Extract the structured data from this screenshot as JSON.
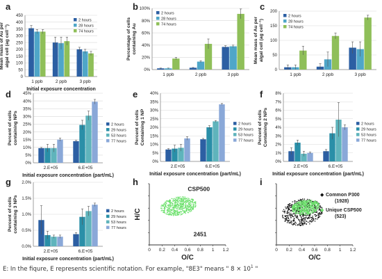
{
  "footnote": {
    "text": "E: In the fiqure, E represents scientific notation. For example, \"8E3\" means \" 8 × 10",
    "sup": "1",
    "end": " \""
  },
  "chart_data": [
    {
      "id": "a",
      "type": "bar",
      "letter": "a",
      "categories": [
        "1 ppb",
        "2 ppb",
        "3 ppb"
      ],
      "series": [
        {
          "name": "2 hours",
          "color": "#2c5fa3",
          "values": [
            355,
            250,
            200
          ],
          "err": [
            20,
            40,
            15
          ]
        },
        {
          "name": "28 hours",
          "color": "#4fa6c8",
          "values": [
            330,
            245,
            185
          ],
          "err": [
            15,
            45,
            15
          ]
        },
        {
          "name": "74 hours",
          "color": "#8fbf59",
          "values": [
            330,
            260,
            170
          ],
          "err": [
            15,
            30,
            15
          ]
        }
      ],
      "ylim": [
        0,
        450
      ],
      "yticks": [
        0,
        50,
        100,
        150,
        200,
        250,
        300,
        350,
        400,
        450
      ],
      "ylabel": "Mean mass of Au per algal cell (ag cell⁻¹)",
      "xlabel": "Initial exposure concentration",
      "legend": "top-right"
    },
    {
      "id": "b",
      "type": "bar",
      "letter": "b",
      "categories": [
        "1 ppb",
        "2 ppb",
        "3 ppb"
      ],
      "series": [
        {
          "name": "2 hours",
          "color": "#2c5fa3",
          "values": [
            2,
            3,
            37
          ],
          "err": [
            0.5,
            0.5,
            2
          ]
        },
        {
          "name": "28 hours",
          "color": "#4fa6c8",
          "values": [
            2,
            13,
            38
          ],
          "err": [
            0.5,
            1.5,
            2
          ]
        },
        {
          "name": "74 hours",
          "color": "#8fbf59",
          "values": [
            18,
            42,
            91
          ],
          "err": [
            2,
            8,
            8
          ]
        }
      ],
      "ylim": [
        0,
        100
      ],
      "yticks": [
        0,
        20,
        40,
        60,
        80,
        100
      ],
      "ytickSuffix": "%",
      "ylabel": "Percentage of cells containing Au",
      "xlabel": "",
      "legend": "top-left"
    },
    {
      "id": "c",
      "type": "bar",
      "letter": "c",
      "categories": [
        "1 ppb",
        "2 ppb",
        "3 ppb"
      ],
      "series": [
        {
          "name": "2 hours",
          "color": "#2c5fa3",
          "values": [
            8,
            10,
            75
          ],
          "err": [
            8,
            10,
            20
          ]
        },
        {
          "name": "28 hours",
          "color": "#4fa6c8",
          "values": [
            8,
            35,
            70
          ],
          "err": [
            8,
            25,
            25
          ]
        },
        {
          "name": "74 hours",
          "color": "#8fbf59",
          "values": [
            65,
            115,
            178
          ],
          "err": [
            15,
            10,
            8
          ]
        }
      ],
      "ylim": [
        0,
        200
      ],
      "yticks": [
        0,
        50,
        100,
        150,
        200
      ],
      "ylabel": "Mean mass of Au per algal cell (ag cell⁻¹)",
      "xlabel": "",
      "legend": "top-left"
    },
    {
      "id": "d",
      "type": "bar",
      "letter": "d",
      "categories": [
        "2.E+05",
        "6.E+05"
      ],
      "series": [
        {
          "name": "2 hours",
          "color": "#2c5fa3",
          "values": [
            9.5,
            14
          ],
          "err": [
            0.5,
            0.5
          ]
        },
        {
          "name": "29 hours",
          "color": "#2a8fa8",
          "values": [
            9.5,
            24.5
          ],
          "err": [
            2.5,
            3
          ]
        },
        {
          "name": "53 hours",
          "color": "#5fb4bc",
          "values": [
            9.5,
            30.5
          ],
          "err": [
            2.5,
            3
          ]
        },
        {
          "name": "77 hours",
          "color": "#8aa8d8",
          "values": [
            15,
            39.5
          ],
          "err": [
            1,
            1.5
          ]
        }
      ],
      "ylim": [
        0,
        45
      ],
      "yticks": [
        0,
        5,
        10,
        15,
        20,
        25,
        30,
        35,
        40,
        45
      ],
      "ytickSuffix": "%",
      "ylabel": "Percent of cells containing NPs",
      "xlabel": "Initial exposure concentration (part/mL)",
      "legend": "right"
    },
    {
      "id": "e",
      "type": "bar",
      "letter": "e",
      "categories": [
        "2.E+05",
        "6.E+05"
      ],
      "series": [
        {
          "name": "2 hours",
          "color": "#2c5fa3",
          "values": [
            7,
            13
          ],
          "err": [
            0.5,
            0.5
          ]
        },
        {
          "name": "29 hours",
          "color": "#2a8fa8",
          "values": [
            7.5,
            20
          ],
          "err": [
            2,
            1
          ]
        },
        {
          "name": "53 hours",
          "color": "#5fb4bc",
          "values": [
            8,
            23.5
          ],
          "err": [
            2,
            0.5
          ]
        },
        {
          "name": "77 hours",
          "color": "#8aa8d8",
          "values": [
            13.5,
            33.5
          ],
          "err": [
            1,
            0.5
          ]
        }
      ],
      "ylim": [
        0,
        40
      ],
      "yticks": [
        0,
        5,
        10,
        15,
        20,
        25,
        30,
        35,
        40
      ],
      "ytickSuffix": "%",
      "ylabel": "Percent of cells Containing 1 NP",
      "xlabel": "Initial exposure concentration (part/mL)",
      "legend": "right"
    },
    {
      "id": "f",
      "type": "bar",
      "letter": "f",
      "categories": [
        "2.E+05",
        "6.E+05"
      ],
      "series": [
        {
          "name": "2 hours",
          "color": "#2c5fa3",
          "values": [
            1.2,
            1.2
          ],
          "err": [
            0.4,
            0.2
          ]
        },
        {
          "name": "29 hours",
          "color": "#2a8fa8",
          "values": [
            2.2,
            3.3
          ],
          "err": [
            0.3,
            0.7
          ]
        },
        {
          "name": "53 hours",
          "color": "#5fb4bc",
          "values": [
            0.9,
            4.9
          ],
          "err": [
            0.3,
            2.0
          ]
        },
        {
          "name": "77 hours",
          "color": "#8aa8d8",
          "values": [
            1.0,
            4.0
          ],
          "err": [
            0.1,
            0.3
          ]
        }
      ],
      "ylim": [
        0,
        8
      ],
      "yticks": [
        0,
        1,
        2,
        3,
        4,
        5,
        6,
        7,
        8
      ],
      "ytickSuffix": "%",
      "ylabel": "Percent of cells Containing 2 NPs",
      "xlabel": "Initial exposure concentration (part/mL)",
      "legend": "right"
    },
    {
      "id": "g",
      "type": "bar",
      "letter": "g",
      "categories": [
        "2.E+05",
        "6.E+05"
      ],
      "series": [
        {
          "name": "2 hours",
          "color": "#2c5fa3",
          "values": [
            0.82,
            0.38
          ],
          "err": [
            0.45,
            0.05
          ]
        },
        {
          "name": "29 hours",
          "color": "#2a8fa8",
          "values": [
            0.35,
            0.92
          ],
          "err": [
            0.12,
            0.25
          ]
        },
        {
          "name": "53 hours",
          "color": "#5fb4bc",
          "values": [
            0.3,
            1.1
          ],
          "err": [
            0.05,
            0.15
          ]
        },
        {
          "name": "77 hours",
          "color": "#8aa8d8",
          "values": [
            0.3,
            1.3
          ],
          "err": [
            0.05,
            0.05
          ]
        }
      ],
      "ylim": [
        0,
        2
      ],
      "yticks": [
        0,
        0.5,
        1.0,
        1.5,
        2.0
      ],
      "ytickLabels": [
        "0.0%",
        "0.5%",
        "1.0%",
        "1.5%",
        "2.0%"
      ],
      "ylabel": "Percent of cells containing 3 NPs",
      "xlabel": "Initial exposure concentration (part/mL)",
      "legend": "right"
    },
    {
      "id": "h",
      "type": "scatter",
      "letter": "h",
      "xlabel": "O/C",
      "ylabel": "H/C",
      "xlim": [
        0,
        1.2
      ],
      "ylim": [
        0,
        2.5
      ],
      "xticks": [
        0,
        0.2,
        0.4,
        0.6,
        0.8,
        1,
        1.2
      ],
      "yticks": [
        0,
        0.5,
        1,
        1.5,
        2,
        2.5
      ],
      "annotations": [
        {
          "text": "CSP500",
          "x": 0.95,
          "y": 2.2
        },
        {
          "text": "2451",
          "x": 0.9,
          "y": 0.35
        }
      ],
      "clouds": [
        {
          "color": "#6be06b",
          "cx": 0.45,
          "cy": 1.6,
          "rx": 0.28,
          "ry": 0.38
        }
      ]
    },
    {
      "id": "i",
      "type": "scatter",
      "letter": "i",
      "xlabel": "O/C",
      "ylabel": "",
      "xlim": [
        0,
        1.2
      ],
      "ylim": [
        0,
        2.5
      ],
      "xticks": [
        0,
        0.2,
        0.4,
        0.6,
        0.8,
        1,
        1.2
      ],
      "yticks": [
        0,
        0.5,
        1,
        1.5,
        2,
        2.5
      ],
      "legend_entries": [
        {
          "symbol": "◆",
          "color": "#111111",
          "label": "Common P300",
          "count": "(1928)"
        },
        {
          "symbol": "◆",
          "color": "#6be06b",
          "label": "Unique CSP500",
          "count": "(523)"
        }
      ],
      "clouds": [
        {
          "color": "#111111",
          "cx": 0.4,
          "cy": 1.35,
          "rx": 0.32,
          "ry": 0.55
        },
        {
          "color": "#6be06b",
          "cx": 0.45,
          "cy": 1.55,
          "rx": 0.22,
          "ry": 0.3
        }
      ]
    }
  ]
}
